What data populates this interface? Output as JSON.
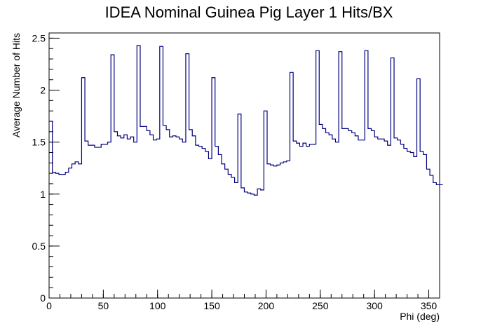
{
  "chart_data": {
    "type": "histogram",
    "title": "IDEA Nominal Guinea Pig Layer 1 Hits/BX",
    "xlabel": "Phi (deg)",
    "ylabel": "Average Number of Hits",
    "xlim": [
      0,
      360
    ],
    "ylim": [
      0,
      2.55
    ],
    "bin_width": 3,
    "x_ticks": [
      0,
      50,
      100,
      150,
      200,
      250,
      300,
      350
    ],
    "x_tick_labels": [
      "0",
      "50",
      "100",
      "150",
      "200",
      "250",
      "300",
      "350"
    ],
    "y_ticks": [
      0,
      0.5,
      1,
      1.5,
      2,
      2.5
    ],
    "y_tick_labels": [
      "0",
      "0.5",
      "1",
      "1.5",
      "2",
      "2.5"
    ],
    "grid": false,
    "line_color": "#000080",
    "values": [
      1.7,
      1.21,
      1.2,
      1.19,
      1.19,
      1.21,
      1.25,
      1.29,
      1.31,
      1.29,
      2.12,
      1.51,
      1.47,
      1.47,
      1.45,
      1.45,
      1.48,
      1.48,
      1.5,
      2.34,
      1.6,
      1.56,
      1.54,
      1.57,
      1.53,
      1.55,
      1.5,
      2.43,
      1.65,
      1.65,
      1.61,
      1.57,
      1.52,
      1.53,
      2.42,
      1.66,
      1.62,
      1.55,
      1.56,
      1.55,
      1.53,
      1.5,
      2.35,
      1.62,
      1.56,
      1.47,
      1.46,
      1.44,
      1.41,
      1.34,
      2.12,
      1.46,
      1.38,
      1.29,
      1.24,
      1.19,
      1.16,
      1.11,
      1.77,
      1.06,
      1.02,
      1.01,
      1.0,
      0.99,
      1.05,
      1.04,
      1.8,
      1.29,
      1.28,
      1.27,
      1.28,
      1.3,
      1.31,
      1.32,
      2.17,
      1.51,
      1.49,
      1.46,
      1.49,
      1.46,
      1.48,
      1.48,
      2.38,
      1.67,
      1.63,
      1.59,
      1.57,
      1.53,
      1.5,
      2.37,
      1.63,
      1.63,
      1.61,
      1.59,
      1.56,
      1.52,
      1.52,
      2.38,
      1.63,
      1.61,
      1.55,
      1.53,
      1.53,
      1.51,
      1.47,
      2.31,
      1.54,
      1.52,
      1.48,
      1.44,
      1.41,
      1.4,
      1.36,
      2.11,
      1.41,
      1.38,
      1.24,
      1.18,
      1.11,
      1.09,
      1.09
    ]
  }
}
